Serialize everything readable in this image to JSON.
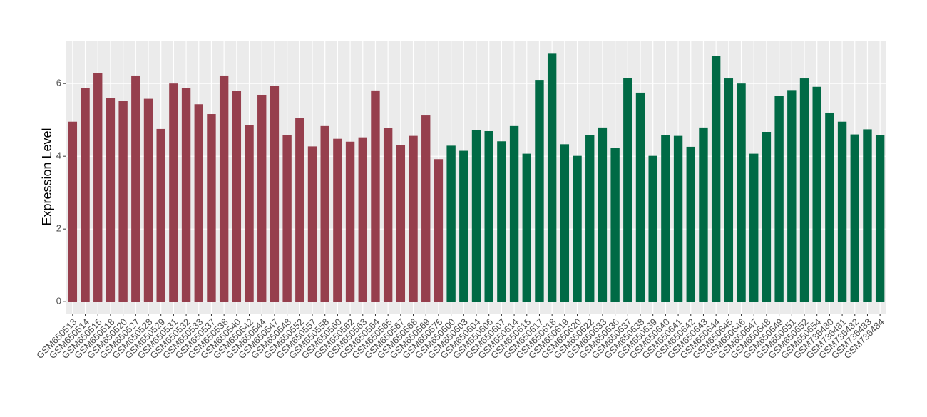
{
  "chart_data": {
    "type": "bar",
    "y_label": "Expression Level",
    "categories": [
      "GSM650513",
      "GSM650514",
      "GSM650515",
      "GSM650518",
      "GSM650520",
      "GSM650527",
      "GSM650528",
      "GSM650529",
      "GSM650531",
      "GSM650532",
      "GSM650533",
      "GSM650537",
      "GSM650538",
      "GSM650540",
      "GSM650542",
      "GSM650544",
      "GSM650547",
      "GSM650548",
      "GSM650552",
      "GSM650557",
      "GSM650558",
      "GSM650560",
      "GSM650562",
      "GSM650563",
      "GSM650564",
      "GSM650565",
      "GSM650567",
      "GSM650568",
      "GSM650569",
      "GSM650575",
      "GSM650600",
      "GSM650603",
      "GSM650604",
      "GSM650606",
      "GSM650607",
      "GSM650614",
      "GSM650615",
      "GSM650617",
      "GSM650618",
      "GSM650619",
      "GSM650620",
      "GSM650622",
      "GSM650633",
      "GSM650636",
      "GSM650637",
      "GSM650638",
      "GSM650639",
      "GSM650640",
      "GSM650641",
      "GSM650642",
      "GSM650643",
      "GSM650644",
      "GSM650645",
      "GSM650646",
      "GSM650647",
      "GSM650648",
      "GSM650649",
      "GSM650651",
      "GSM650652",
      "GSM650654",
      "GSM736480",
      "GSM736481",
      "GSM736482",
      "GSM736483",
      "GSM736484"
    ],
    "values": [
      4.95,
      5.87,
      6.28,
      5.6,
      5.53,
      6.22,
      5.58,
      4.75,
      6.0,
      5.88,
      5.43,
      5.16,
      6.22,
      5.79,
      4.85,
      5.69,
      5.93,
      4.59,
      5.05,
      4.27,
      4.83,
      4.48,
      4.4,
      4.52,
      5.81,
      4.78,
      4.3,
      4.56,
      5.12,
      3.92,
      4.29,
      4.15,
      4.71,
      4.69,
      4.41,
      4.83,
      4.07,
      6.1,
      6.82,
      4.33,
      4.01,
      4.58,
      4.79,
      4.23,
      6.16,
      5.75,
      4.01,
      4.58,
      4.56,
      4.26,
      4.79,
      6.76,
      6.14,
      6.0,
      4.07,
      4.67,
      5.66,
      5.82,
      6.14,
      5.91,
      5.2,
      4.95,
      4.6,
      4.74,
      4.58
    ],
    "colors": [
      "#963f4d",
      "#963f4d",
      "#963f4d",
      "#963f4d",
      "#963f4d",
      "#963f4d",
      "#963f4d",
      "#963f4d",
      "#963f4d",
      "#963f4d",
      "#963f4d",
      "#963f4d",
      "#963f4d",
      "#963f4d",
      "#963f4d",
      "#963f4d",
      "#963f4d",
      "#963f4d",
      "#963f4d",
      "#963f4d",
      "#963f4d",
      "#963f4d",
      "#963f4d",
      "#963f4d",
      "#963f4d",
      "#963f4d",
      "#963f4d",
      "#963f4d",
      "#963f4d",
      "#963f4d",
      "#006a45",
      "#006a45",
      "#006a45",
      "#006a45",
      "#006a45",
      "#006a45",
      "#006a45",
      "#006a45",
      "#006a45",
      "#006a45",
      "#006a45",
      "#006a45",
      "#006a45",
      "#006a45",
      "#006a45",
      "#006a45",
      "#006a45",
      "#006a45",
      "#006a45",
      "#006a45",
      "#006a45",
      "#006a45",
      "#006a45",
      "#006a45",
      "#006a45",
      "#006a45",
      "#006a45",
      "#006a45",
      "#006a45",
      "#006a45",
      "#006a45",
      "#006a45",
      "#006a45",
      "#006a45",
      "#006a45"
    ],
    "ylim": [
      -0.33,
      7.18
    ],
    "yticks": [
      0,
      2,
      4,
      6
    ],
    "grid": true
  }
}
